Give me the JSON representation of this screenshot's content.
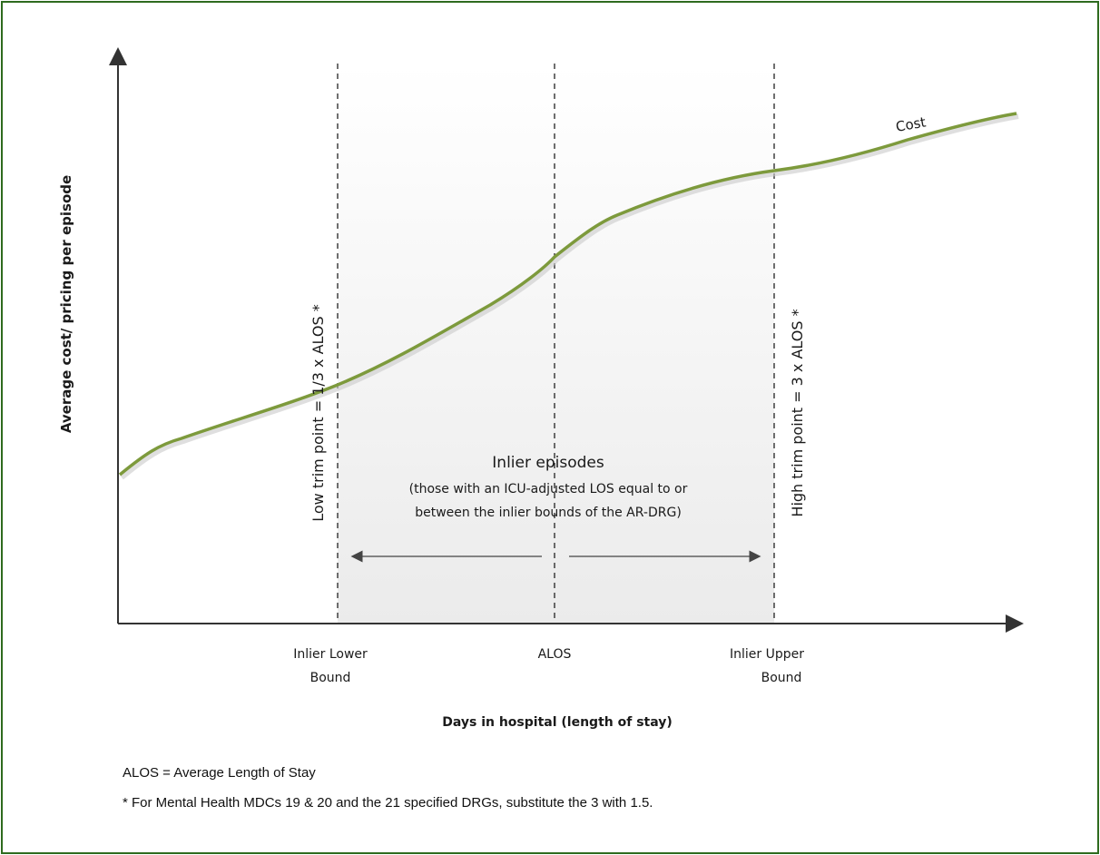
{
  "diagram": {
    "y_axis_label": "Average cost/ pricing per episode",
    "x_axis_label": "Days in hospital (length of stay)",
    "curve_label": "Cost",
    "low_trim_label": "Low trim point = 1/3 x ALOS *",
    "high_trim_label": "High trim point = 3 x ALOS *",
    "inlier_title": "Inlier episodes",
    "inlier_desc_line1": "(those with an ICU-adjusted LOS equal to or",
    "inlier_desc_line2": "between the inlier bounds of the AR-DRG)",
    "x_ticks": {
      "lower_line1": "Inlier Lower",
      "lower_line2": "Bound",
      "alos": "ALOS",
      "upper_line1": "Inlier Upper",
      "upper_line2": "Bound"
    },
    "colors": {
      "curve": "#7d9a3c",
      "frame": "#2e6b1e",
      "band": "#f0f0f0",
      "axis": "#333333"
    }
  },
  "notes": {
    "alos_definition": "ALOS = Average Length of Stay",
    "mental_health_note": "* For Mental Health MDCs 19 & 20 and the 21 specified DRGs, substitute the 3 with 1.5."
  }
}
